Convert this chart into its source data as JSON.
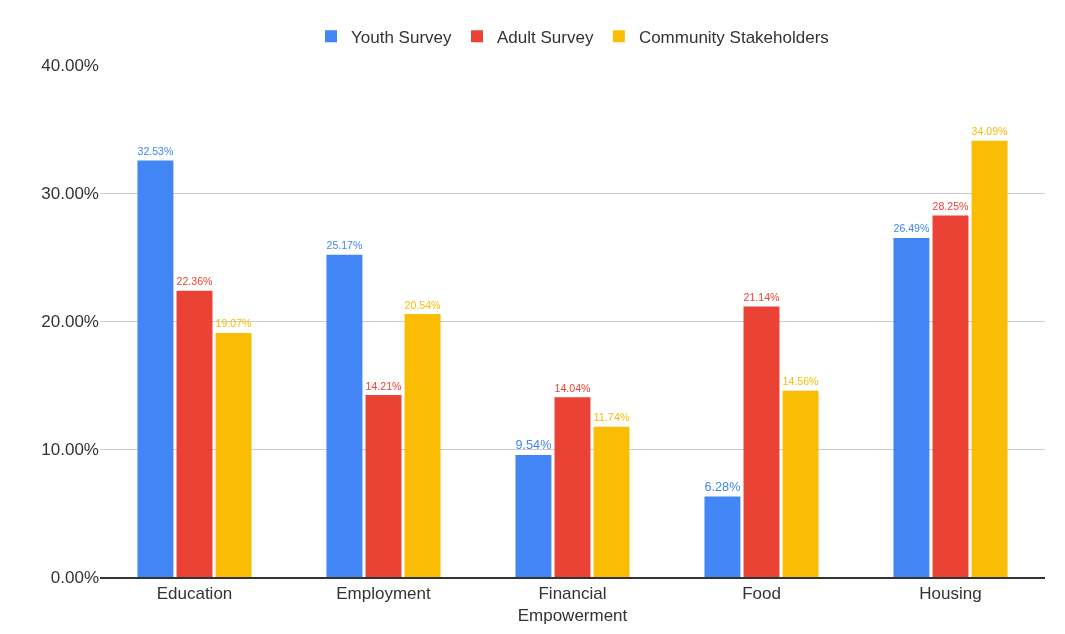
{
  "chart_data": {
    "type": "bar",
    "categories": [
      "Education",
      "Employment",
      "Financial Empowerment",
      "Food",
      "Housing"
    ],
    "series": [
      {
        "name": "Youth Survey",
        "color": "#4285f4",
        "values": [
          32.53,
          25.17,
          9.54,
          6.28,
          26.49
        ],
        "value_labels": [
          "32.53%",
          "25.17%",
          "9.54%",
          "6.28%",
          "26.49%"
        ]
      },
      {
        "name": "Adult Survey",
        "color": "#ea4335",
        "values": [
          22.36,
          14.21,
          14.04,
          21.14,
          28.25
        ],
        "value_labels": [
          "22.36%",
          "14.21%",
          "14.04%",
          "21.14%",
          "28.25%"
        ]
      },
      {
        "name": "Community Stakeholders",
        "color": "#fbbc04",
        "values": [
          19.07,
          20.54,
          11.74,
          14.56,
          34.09
        ],
        "value_labels": [
          "19.07%",
          "20.54%",
          "11.74%",
          "14.56%",
          "34.09%"
        ]
      }
    ],
    "ylim": [
      0,
      40
    ],
    "yticks": [
      {
        "value": 0,
        "label": "0.00%"
      },
      {
        "value": 10,
        "label": "10.00%"
      },
      {
        "value": 20,
        "label": "20.00%"
      },
      {
        "value": 30,
        "label": "30.00%"
      },
      {
        "value": 40,
        "label": "40.00%"
      }
    ],
    "grid": "y",
    "legend": "top"
  }
}
